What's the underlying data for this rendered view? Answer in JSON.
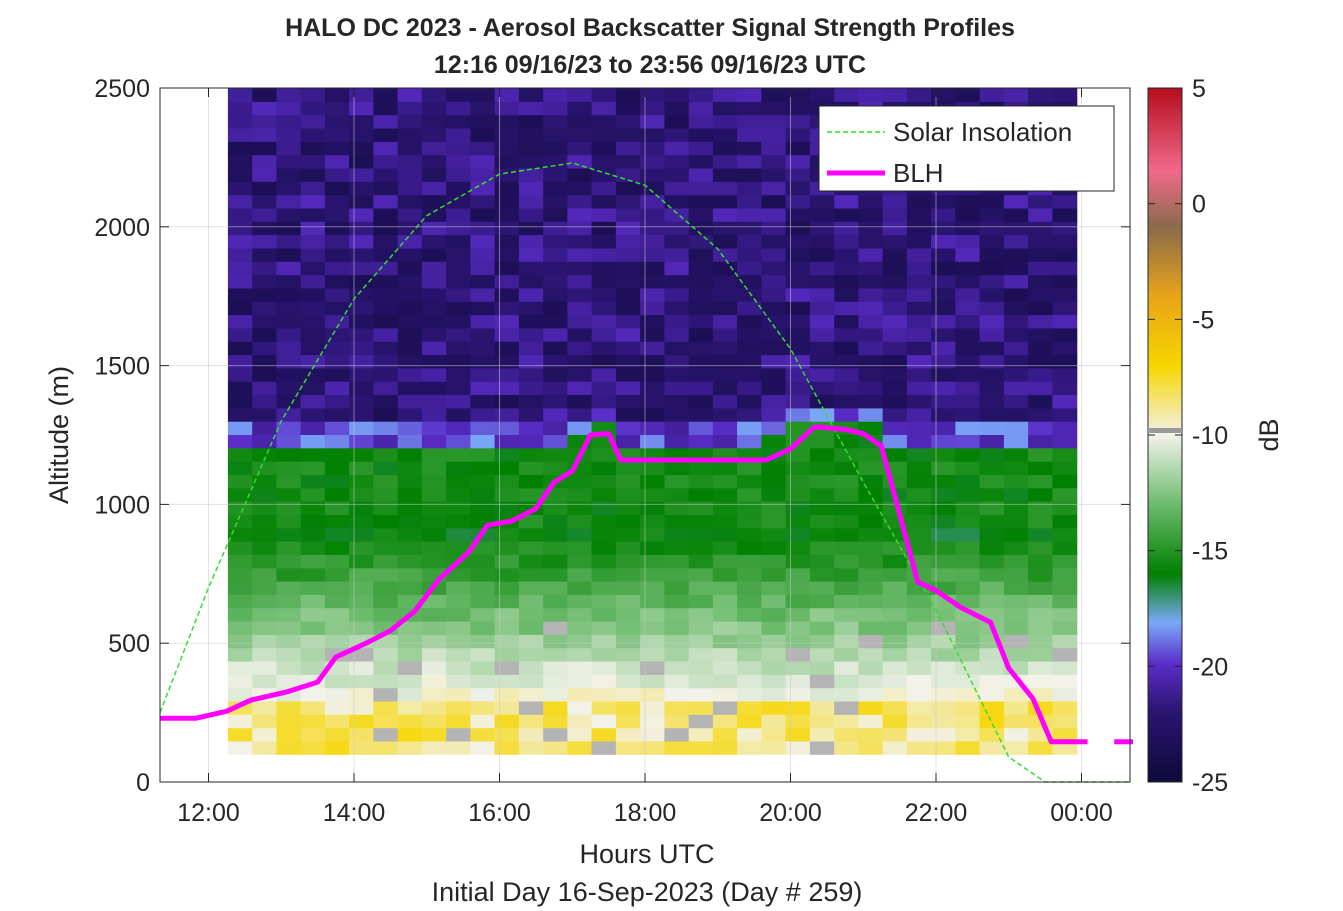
{
  "chart_data": {
    "type": "heatmap",
    "title_line1": "HALO DC 2023 - Aerosol Backscatter Signal Strength Profiles",
    "title_line2": "12:16 09/16/23 to 23:56 09/16/23  UTC",
    "xlabel": "Hours UTC",
    "ylabel": "Altitude (m)",
    "subtitle": "Initial Day 16-Sep-2023 (Day # 259)",
    "colorbar_label": "dB",
    "colorbar_range": [
      -25,
      5
    ],
    "colorbar_ticks": [
      "5",
      "0",
      "-5",
      "-10",
      "-15",
      "-20",
      "-25"
    ],
    "xlim": [
      "11:20",
      "00:40"
    ],
    "ylim": [
      0,
      2500
    ],
    "x_ticks": [
      "12:00",
      "14:00",
      "16:00",
      "18:00",
      "20:00",
      "22:00",
      "00:00"
    ],
    "y_ticks": [
      "0",
      "500",
      "1000",
      "1500",
      "2000",
      "2500"
    ],
    "grid": true,
    "legend_position": "top-right",
    "data_time_range": [
      "12:16",
      "23:56"
    ],
    "data_altitude_range_m": [
      100,
      2500
    ],
    "series": [
      {
        "name": "Solar Insolation",
        "style": "dashed",
        "color": "#33dd33",
        "points_altitude_equiv_m": [
          [
            "11:20",
            250
          ],
          [
            "12:00",
            700
          ],
          [
            "13:00",
            1300
          ],
          [
            "14:00",
            1740
          ],
          [
            "15:00",
            2040
          ],
          [
            "16:00",
            2190
          ],
          [
            "17:00",
            2230
          ],
          [
            "18:00",
            2150
          ],
          [
            "19:00",
            1920
          ],
          [
            "20:00",
            1560
          ],
          [
            "21:00",
            1080
          ],
          [
            "22:00",
            620
          ],
          [
            "23:00",
            90
          ],
          [
            "23:30",
            0
          ],
          [
            "00:40",
            0
          ]
        ]
      },
      {
        "name": "BLH",
        "style": "solid",
        "color": "#ff00ff",
        "points_m": [
          [
            "11:20",
            230
          ],
          [
            "11:50",
            230
          ],
          [
            "12:15",
            255
          ],
          [
            "12:35",
            295
          ],
          [
            "13:05",
            325
          ],
          [
            "13:30",
            360
          ],
          [
            "13:45",
            450
          ],
          [
            "14:10",
            500
          ],
          [
            "14:30",
            545
          ],
          [
            "14:50",
            615
          ],
          [
            "15:10",
            730
          ],
          [
            "15:35",
            830
          ],
          [
            "15:50",
            925
          ],
          [
            "16:10",
            940
          ],
          [
            "16:30",
            985
          ],
          [
            "16:45",
            1080
          ],
          [
            "17:00",
            1120
          ],
          [
            "17:15",
            1250
          ],
          [
            "17:30",
            1255
          ],
          [
            "17:40",
            1160
          ],
          [
            "18:00",
            1160
          ],
          [
            "19:00",
            1160
          ],
          [
            "19:40",
            1160
          ],
          [
            "20:00",
            1200
          ],
          [
            "20:20",
            1280
          ],
          [
            "20:45",
            1270
          ],
          [
            "21:00",
            1255
          ],
          [
            "21:15",
            1210
          ],
          [
            "21:45",
            720
          ],
          [
            "22:00",
            690
          ],
          [
            "22:20",
            630
          ],
          [
            "22:45",
            575
          ],
          [
            "23:00",
            410
          ],
          [
            "23:20",
            300
          ],
          [
            "23:35",
            145
          ],
          [
            "23:56",
            145
          ],
          [
            "00:20",
            145
          ],
          [
            "00:40",
            145
          ]
        ]
      }
    ]
  }
}
